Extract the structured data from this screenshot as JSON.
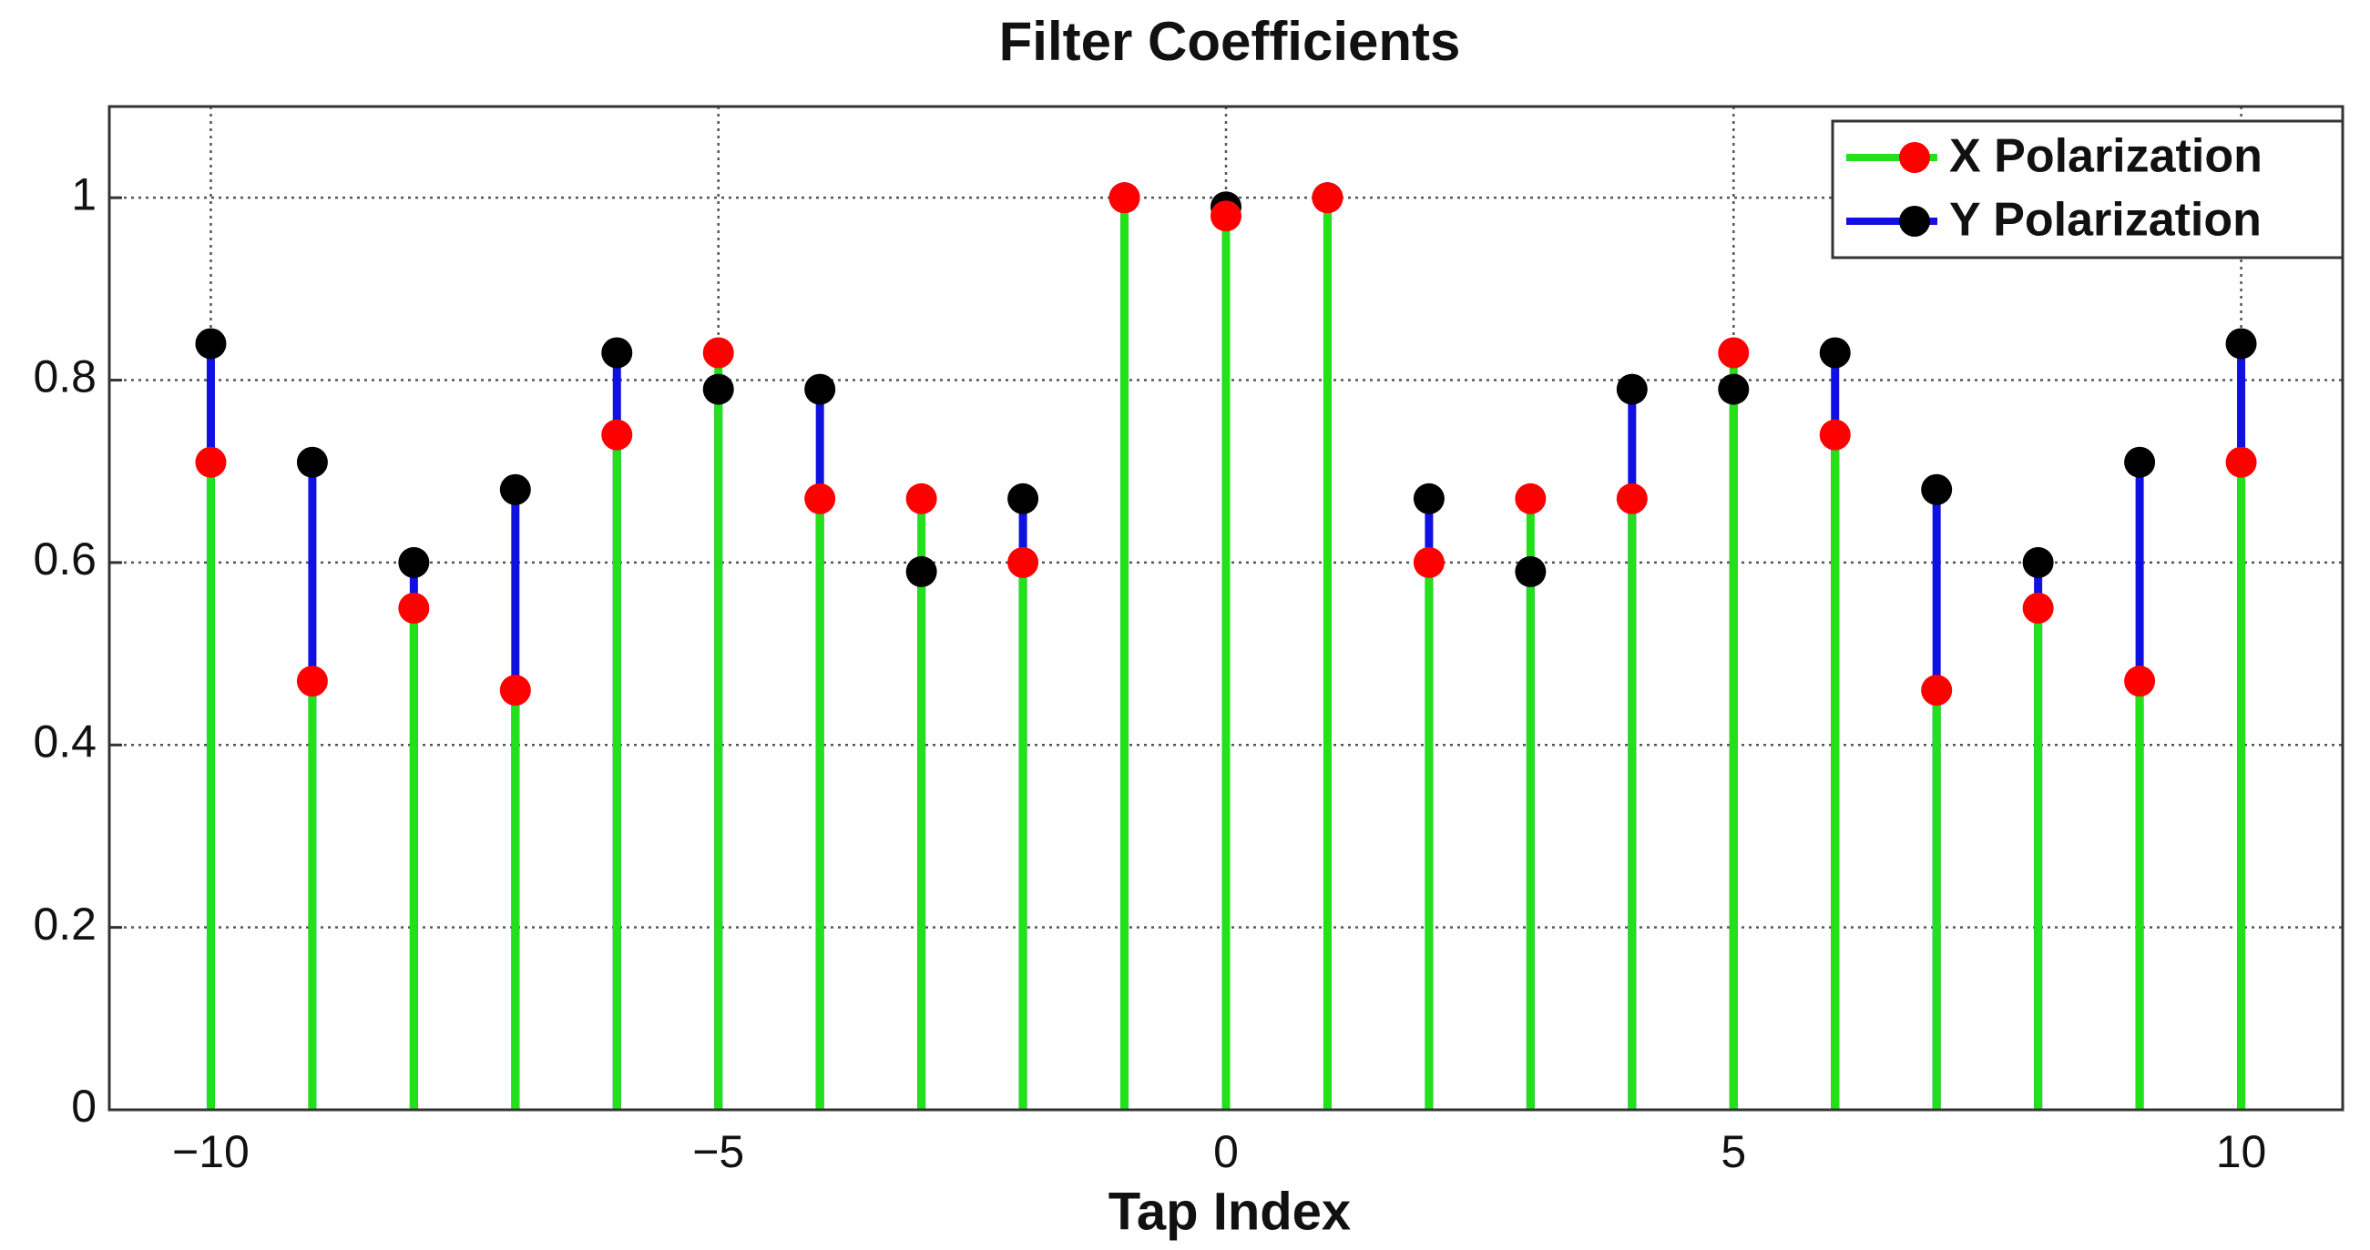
{
  "chart_data": {
    "type": "stem",
    "title": "Filter Coefficients",
    "xlabel": "Tap Index",
    "x": [
      -10,
      -9,
      -8,
      -7,
      -6,
      -5,
      -4,
      -3,
      -2,
      -1,
      0,
      1,
      2,
      3,
      4,
      5,
      6,
      7,
      8,
      9,
      10
    ],
    "series": [
      {
        "name": "X Polarization",
        "color": "#ff0000",
        "stem_color": "#22e01a",
        "values": [
          0.71,
          0.47,
          0.55,
          0.46,
          0.74,
          0.83,
          0.67,
          0.67,
          0.6,
          1.0,
          0.98,
          1.0,
          0.6,
          0.67,
          0.67,
          0.83,
          0.74,
          0.46,
          0.55,
          0.47,
          0.71
        ]
      },
      {
        "name": "Y Polarization",
        "color": "#000000",
        "stem_color": "#1010e0",
        "values": [
          0.84,
          0.71,
          0.6,
          0.68,
          0.83,
          0.79,
          0.79,
          0.59,
          0.67,
          1.0,
          0.99,
          1.0,
          0.67,
          0.59,
          0.79,
          0.79,
          0.83,
          0.68,
          0.6,
          0.71,
          0.84
        ]
      }
    ],
    "xlim": [
      -11,
      11
    ],
    "ylim": [
      0,
      1.1
    ],
    "xticks": [
      {
        "value": -10,
        "label": "−10"
      },
      {
        "value": -5,
        "label": "−5"
      },
      0,
      5,
      10
    ],
    "yticks": [
      0,
      0.2,
      0.4,
      0.6,
      0.8,
      1
    ],
    "grid": true,
    "legend": "upper right"
  }
}
